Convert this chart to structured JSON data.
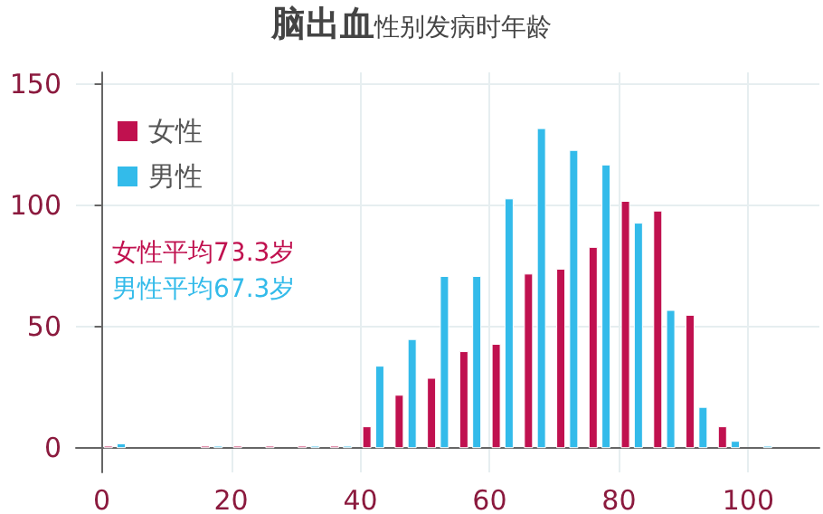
{
  "chart_data": {
    "type": "bar",
    "title": "脑出血",
    "subtitle": "性别发病时年龄",
    "series": [
      {
        "name": "女性",
        "color": "#c0114f",
        "x": [
          1,
          16,
          21,
          26,
          31,
          36,
          41,
          46,
          51,
          56,
          61,
          66,
          71,
          76,
          81,
          86,
          91,
          96
        ],
        "values": [
          1,
          1,
          1,
          1,
          1,
          1,
          9,
          22,
          29,
          40,
          43,
          72,
          74,
          83,
          102,
          98,
          55,
          9
        ]
      },
      {
        "name": "男性",
        "color": "#33bbea",
        "x": [
          3,
          18,
          33,
          38,
          43,
          48,
          53,
          58,
          63,
          68,
          73,
          78,
          83,
          88,
          93,
          98,
          103
        ],
        "values": [
          2,
          1,
          1,
          1,
          34,
          45,
          71,
          71,
          103,
          132,
          123,
          117,
          93,
          57,
          17,
          3,
          1
        ]
      }
    ],
    "xlim": [
      -4,
      111
    ],
    "xticks": [
      0,
      20,
      40,
      60,
      80,
      100
    ],
    "ylim": [
      -10,
      155
    ],
    "yticks": [
      0,
      50,
      100,
      150
    ],
    "grid": true,
    "legend": "top left",
    "annotations": [
      "女性平均73.3岁",
      "男性平均67.3岁"
    ]
  }
}
